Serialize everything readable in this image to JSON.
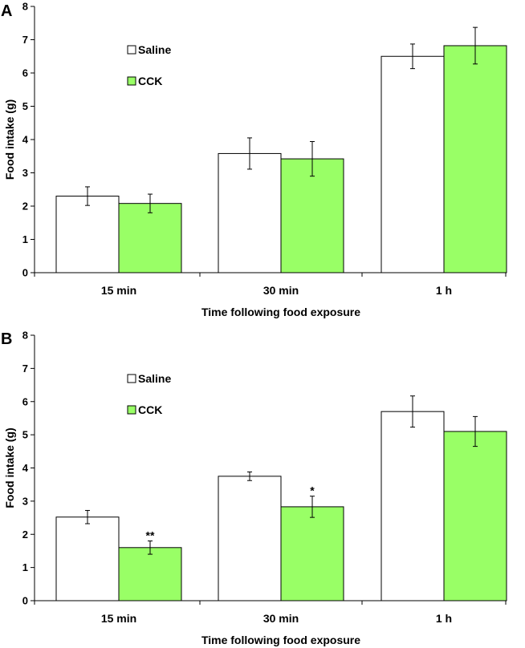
{
  "colors": {
    "saline": "#ffffff",
    "cck": "#99ff66",
    "stroke": "#000000"
  },
  "chart_data": [
    {
      "panel": "A",
      "type": "bar",
      "categories": [
        "15 min",
        "30 min",
        "1 h"
      ],
      "series": [
        {
          "name": "Saline",
          "values": [
            2.3,
            3.58,
            6.5
          ],
          "errors": [
            0.28,
            0.47,
            0.37
          ]
        },
        {
          "name": "CCK",
          "values": [
            2.08,
            3.42,
            6.82
          ],
          "errors": [
            0.28,
            0.52,
            0.55
          ]
        }
      ],
      "significance": [],
      "xlabel": "Time following food exposure",
      "ylabel": "Food intake (g)",
      "ylim": [
        0,
        8
      ],
      "yticks": [
        "0",
        "1",
        "2",
        "3",
        "4",
        "5",
        "6",
        "7",
        "8"
      ],
      "legend_position": "upper-left"
    },
    {
      "panel": "B",
      "type": "bar",
      "categories": [
        "15 min",
        "30 min",
        "1 h"
      ],
      "series": [
        {
          "name": "Saline",
          "values": [
            2.52,
            3.75,
            5.7
          ],
          "errors": [
            0.2,
            0.13,
            0.47
          ]
        },
        {
          "name": "CCK",
          "values": [
            1.6,
            2.83,
            5.1
          ],
          "errors": [
            0.2,
            0.32,
            0.45
          ]
        }
      ],
      "significance": [
        {
          "category": "15 min",
          "series": "CCK",
          "label": "**"
        },
        {
          "category": "30 min",
          "series": "CCK",
          "label": "*"
        }
      ],
      "xlabel": "Time following food exposure",
      "ylabel": "Food intake (g)",
      "ylim": [
        0,
        8
      ],
      "yticks": [
        "0",
        "1",
        "2",
        "3",
        "4",
        "5",
        "6",
        "7",
        "8"
      ],
      "legend_position": "upper-left"
    }
  ]
}
